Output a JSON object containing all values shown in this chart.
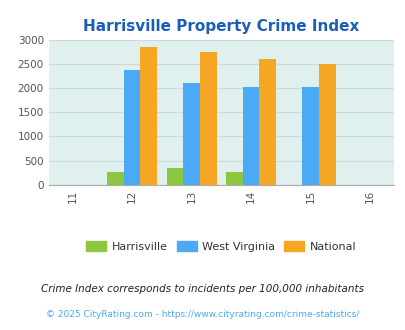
{
  "title": "Harrisville Property Crime Index",
  "years": [
    2011,
    2012,
    2013,
    2014,
    2015,
    2016
  ],
  "bar_years": [
    2012,
    2013,
    2014,
    2015
  ],
  "harrisville": [
    270,
    340,
    270,
    0
  ],
  "west_virginia": [
    2370,
    2100,
    2030,
    2030
  ],
  "national": [
    2850,
    2750,
    2600,
    2500
  ],
  "harrisville_color": "#8dc63f",
  "west_virginia_color": "#4baaf5",
  "national_color": "#f5a623",
  "background_color": "#dff0ee",
  "title_color": "#1a5eb8",
  "legend_labels": [
    "Harrisville",
    "West Virginia",
    "National"
  ],
  "footnote1": "Crime Index corresponds to incidents per 100,000 inhabitants",
  "footnote2": "© 2025 CityRating.com - https://www.cityrating.com/crime-statistics/",
  "ylim": [
    0,
    3000
  ],
  "yticks": [
    0,
    500,
    1000,
    1500,
    2000,
    2500,
    3000
  ],
  "bar_width": 0.28,
  "fig_bg": "#ffffff",
  "grid_color": "#c8dcd8",
  "spine_color": "#aaaaaa"
}
